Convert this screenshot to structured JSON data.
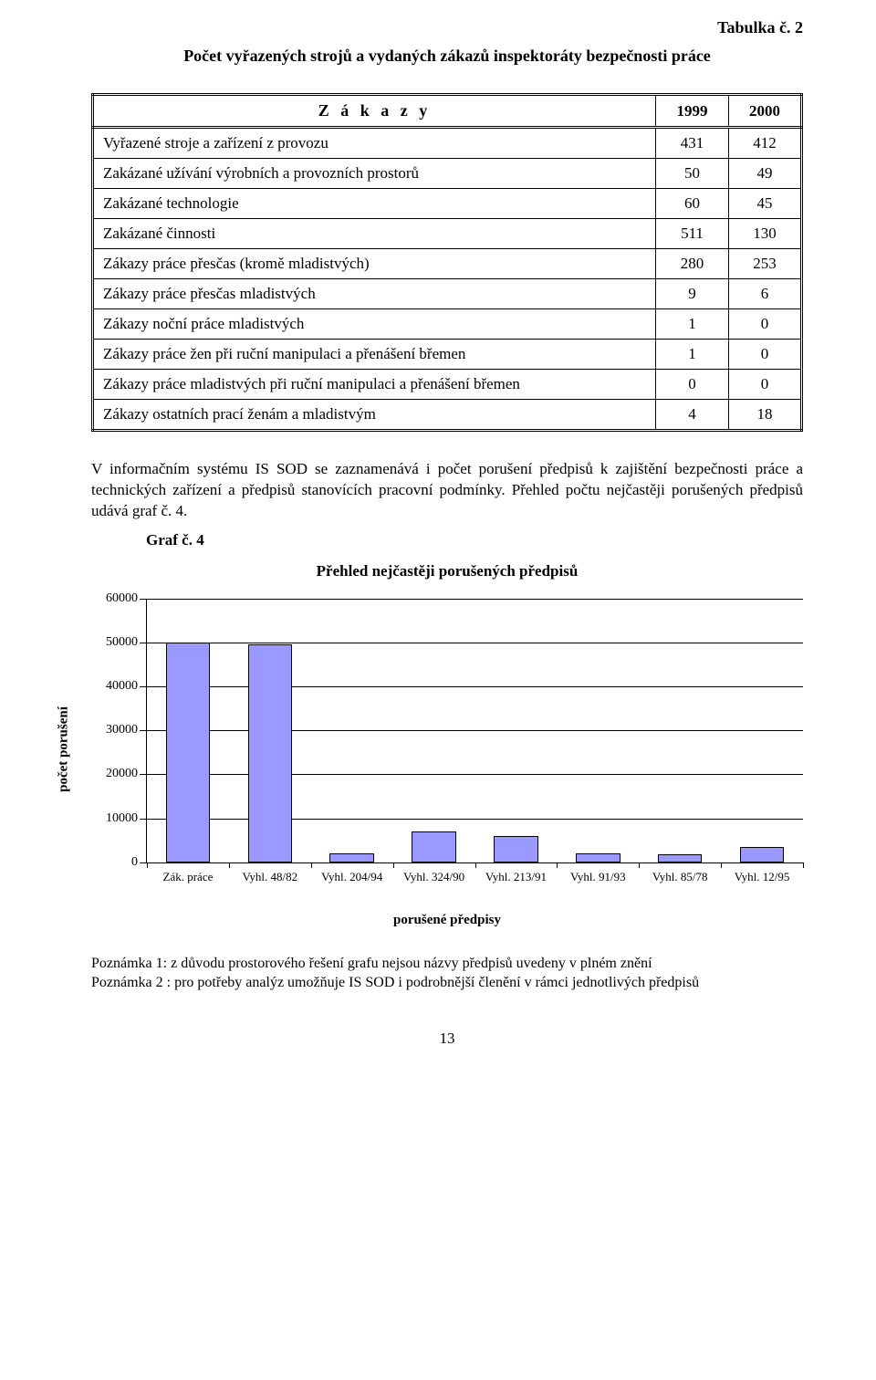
{
  "header": {
    "top_label": "Tabulka č. 2",
    "title": "Počet vyřazených strojů a vydaných zákazů inspektoráty bezpečnosti práce"
  },
  "table": {
    "head_label": "Z á k a z y",
    "year_cols": [
      "1999",
      "2000"
    ],
    "rows": [
      {
        "label": "Vyřazené stroje a zařízení z provozu",
        "vals": [
          "431",
          "412"
        ]
      },
      {
        "label": "Zakázané užívání výrobních a provozních prostorů",
        "vals": [
          "50",
          "49"
        ]
      },
      {
        "label": "Zakázané technologie",
        "vals": [
          "60",
          "45"
        ]
      },
      {
        "label": "Zakázané činnosti",
        "vals": [
          "511",
          "130"
        ]
      },
      {
        "label": "Zákazy práce přesčas (kromě mladistvých)",
        "vals": [
          "280",
          "253"
        ]
      },
      {
        "label": "Zákazy práce přesčas mladistvých",
        "vals": [
          "9",
          "6"
        ]
      },
      {
        "label": "Zákazy noční práce mladistvých",
        "vals": [
          "1",
          "0"
        ]
      },
      {
        "label": "Zákazy práce žen při ruční manipulaci a přenášení břemen",
        "vals": [
          "1",
          "0"
        ]
      },
      {
        "label": "Zákazy práce mladistvých při ruční manipulaci a přenášení břemen",
        "vals": [
          "0",
          "0"
        ]
      },
      {
        "label": "Zákazy ostatních prací ženám a mladistvým",
        "vals": [
          "4",
          "18"
        ]
      }
    ]
  },
  "paragraph": "V informačním systému IS SOD se zaznamenává i počet porušení předpisů k zajištění bezpečnosti práce a technických zařízení a předpisů stanovících pracovní podmínky. Přehled počtu nejčastěji porušených předpisů udává graf č. 4.",
  "graf_label": "Graf č. 4",
  "chart": {
    "type": "bar",
    "title": "Přehled nejčastěji porušených předpisů",
    "ylabel": "počet porušení",
    "xaxis_title": "porušené předpisy",
    "ylim": [
      0,
      60000
    ],
    "ytick_step": 10000,
    "yticks": [
      0,
      10000,
      20000,
      30000,
      40000,
      50000,
      60000
    ],
    "categories": [
      "Zák. práce",
      "Vyhl. 48/82",
      "Vyhl. 204/94",
      "Vyhl. 324/90",
      "Vyhl. 213/91",
      "Vyhl. 91/93",
      "Vyhl. 85/78",
      "Vyhl. 12/95"
    ],
    "values": [
      50000,
      49500,
      2000,
      7000,
      6000,
      2000,
      1800,
      3500
    ],
    "bar_fill": "#9999ff",
    "bar_border": "#000000",
    "axis_color": "#000000",
    "grid_color": "#000000",
    "background_color": "#ffffff",
    "bar_width": 0.54,
    "title_fontsize": 17,
    "label_fontsize": 14
  },
  "notes": {
    "n1": "Poznámka 1:  z důvodu prostorového řešení grafu nejsou názvy předpisů uvedeny v plném znění",
    "n2": "Poznámka 2 : pro potřeby analýz umožňuje IS SOD i podrobnější členění v rámci jednotlivých předpisů"
  },
  "page_number": "13"
}
